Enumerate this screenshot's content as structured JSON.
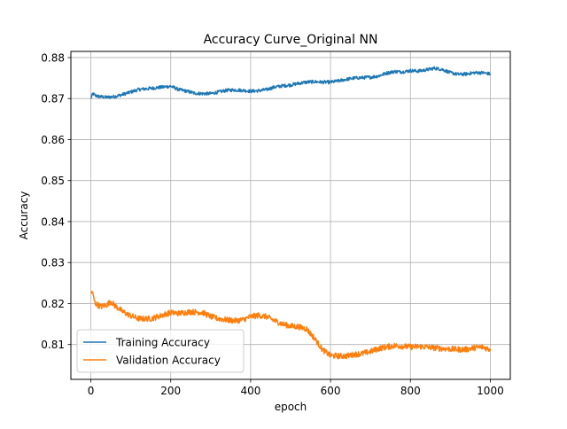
{
  "chart_data": {
    "type": "line",
    "title": "Accuracy Curve_Original NN",
    "xlabel": "epoch",
    "ylabel": "Accuracy",
    "xlim": [
      -50,
      1050
    ],
    "ylim": [
      0.8015,
      0.8815
    ],
    "xticks": [
      0,
      200,
      400,
      600,
      800,
      1000
    ],
    "yticks": [
      0.81,
      0.82,
      0.83,
      0.84,
      0.85,
      0.86,
      0.87,
      0.88
    ],
    "grid": true,
    "legend_position": "lower-left",
    "series": [
      {
        "name": "Training Accuracy",
        "color": "#1f77b4",
        "noise": 0.0004,
        "x": [
          0,
          5,
          10,
          20,
          40,
          60,
          80,
          100,
          120,
          150,
          180,
          200,
          220,
          240,
          260,
          280,
          300,
          320,
          340,
          360,
          380,
          400,
          420,
          440,
          460,
          480,
          500,
          520,
          540,
          560,
          580,
          600,
          620,
          640,
          660,
          680,
          700,
          720,
          740,
          760,
          780,
          800,
          820,
          840,
          860,
          880,
          900,
          920,
          940,
          960,
          980,
          1000
        ],
        "y": [
          0.87,
          0.8712,
          0.8708,
          0.8705,
          0.8703,
          0.8705,
          0.871,
          0.8716,
          0.8722,
          0.8725,
          0.8728,
          0.873,
          0.8722,
          0.8718,
          0.8713,
          0.8712,
          0.8712,
          0.8716,
          0.872,
          0.8721,
          0.872,
          0.8718,
          0.8719,
          0.8722,
          0.8728,
          0.8731,
          0.8733,
          0.8737,
          0.874,
          0.8741,
          0.874,
          0.874,
          0.8743,
          0.8747,
          0.875,
          0.8751,
          0.8752,
          0.8755,
          0.8762,
          0.8766,
          0.8765,
          0.8768,
          0.8767,
          0.877,
          0.8774,
          0.8771,
          0.8763,
          0.8759,
          0.876,
          0.8763,
          0.8763,
          0.876
        ]
      },
      {
        "name": "Validation Accuracy",
        "color": "#ff7f0e",
        "noise": 0.0007,
        "x": [
          0,
          3,
          6,
          10,
          15,
          25,
          40,
          50,
          60,
          80,
          100,
          120,
          150,
          180,
          200,
          220,
          250,
          280,
          300,
          320,
          340,
          360,
          380,
          400,
          420,
          440,
          460,
          480,
          500,
          520,
          540,
          560,
          580,
          600,
          620,
          640,
          660,
          680,
          700,
          720,
          740,
          760,
          780,
          800,
          820,
          840,
          860,
          880,
          900,
          920,
          940,
          960,
          980,
          1000
        ],
        "y": [
          0.822,
          0.8232,
          0.8218,
          0.8202,
          0.8198,
          0.8192,
          0.8197,
          0.8205,
          0.8195,
          0.818,
          0.817,
          0.8163,
          0.8163,
          0.8172,
          0.8178,
          0.8176,
          0.818,
          0.8178,
          0.8168,
          0.8163,
          0.816,
          0.8158,
          0.816,
          0.8168,
          0.8171,
          0.8168,
          0.8158,
          0.815,
          0.8145,
          0.8143,
          0.8138,
          0.8115,
          0.8087,
          0.8073,
          0.8072,
          0.8072,
          0.8076,
          0.8078,
          0.8083,
          0.809,
          0.8094,
          0.8097,
          0.8096,
          0.8094,
          0.8095,
          0.8094,
          0.8092,
          0.809,
          0.8089,
          0.8088,
          0.8088,
          0.8092,
          0.8094,
          0.8088
        ]
      }
    ]
  }
}
